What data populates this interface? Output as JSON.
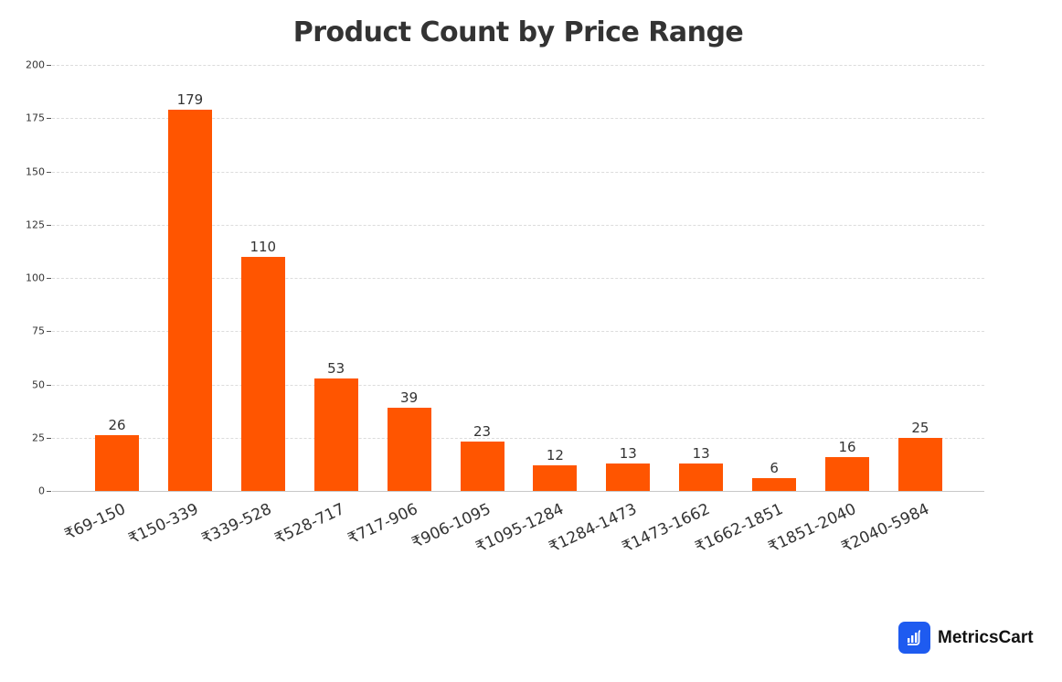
{
  "chart_data": {
    "type": "bar",
    "title": "Product Count by Price Range",
    "xlabel": "",
    "ylabel": "",
    "categories": [
      "₹69-150",
      "₹150-339",
      "₹339-528",
      "₹528-717",
      "₹717-906",
      "₹906-1095",
      "₹1095-1284",
      "₹1284-1473",
      "₹1473-1662",
      "₹1662-1851",
      "₹1851-2040",
      "₹2040-5984"
    ],
    "values": [
      26,
      179,
      110,
      53,
      39,
      23,
      12,
      13,
      13,
      6,
      16,
      25
    ],
    "ylim": [
      0,
      200
    ],
    "yticks": [
      0,
      25,
      50,
      75,
      100,
      125,
      150,
      175,
      200
    ],
    "grid": true,
    "legend": null,
    "bar_color": "#ff5500",
    "data_labels": true
  },
  "brand": {
    "name": "MetricsCart",
    "icon": "bar-chart-cart-icon",
    "color": "#1e5bf0"
  }
}
